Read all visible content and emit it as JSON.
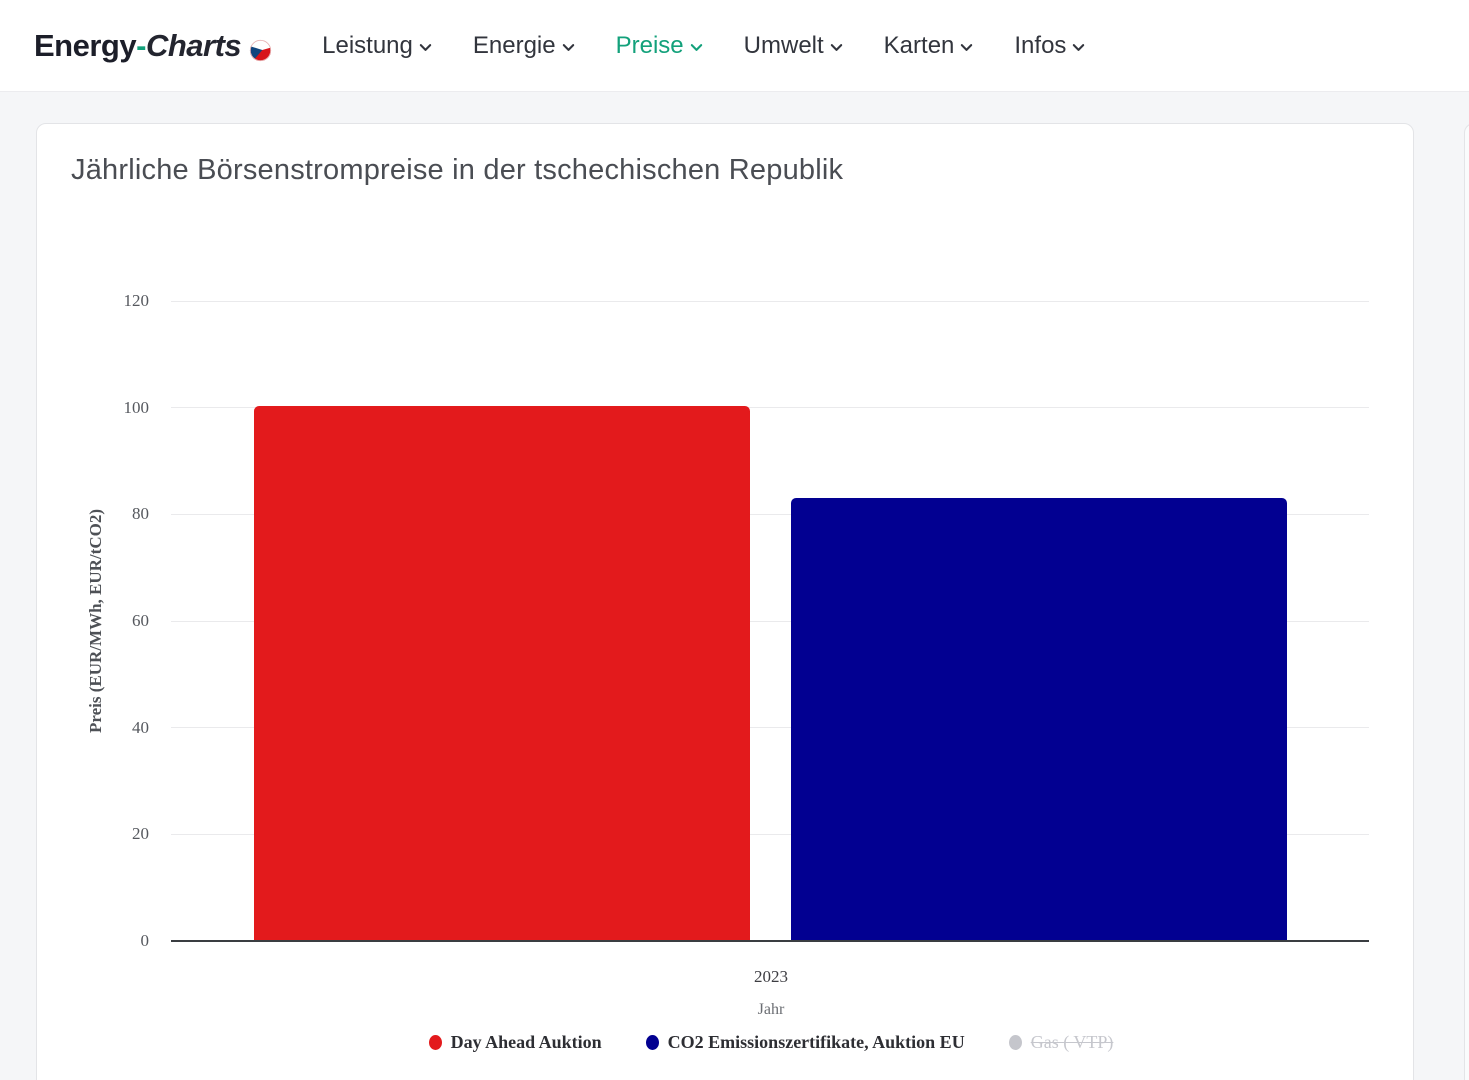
{
  "brand": {
    "energy": "Energy",
    "hyphen": "-",
    "charts": "Charts",
    "flag": "czech-flag"
  },
  "nav": {
    "items": [
      {
        "label": "Leistung",
        "active": false
      },
      {
        "label": "Energie",
        "active": false
      },
      {
        "label": "Preise",
        "active": true
      },
      {
        "label": "Umwelt",
        "active": false
      },
      {
        "label": "Karten",
        "active": false
      },
      {
        "label": "Infos",
        "active": false
      }
    ]
  },
  "colors": {
    "accent": "#13a17b",
    "grid": "#eaeaec",
    "axis_line": "#3a3d41",
    "flag_red": "#d7141a",
    "flag_blue": "#11457e"
  },
  "chart_data": {
    "type": "bar",
    "title": "Jährliche Börsenstrompreise in der tschechischen Republik",
    "categories": [
      "2023"
    ],
    "xlabel": "Jahr",
    "ylabel": "Preis (EUR/MWh, EUR/tCO2)",
    "ylim": [
      0,
      128
    ],
    "yticks": [
      0,
      20,
      40,
      60,
      80,
      100,
      120
    ],
    "grid": true,
    "legend_position": "bottom",
    "series": [
      {
        "name": "Day Ahead Auktion",
        "values": [
          100.3
        ],
        "color": "#e31a1c",
        "active": true
      },
      {
        "name": "CO2 Emissionszertifikate, Auktion EU",
        "values": [
          83
        ],
        "color": "#020091",
        "active": true
      },
      {
        "name": "Gas ( VTP)",
        "values": [],
        "color": "#c5c6cc",
        "active": false
      }
    ]
  }
}
